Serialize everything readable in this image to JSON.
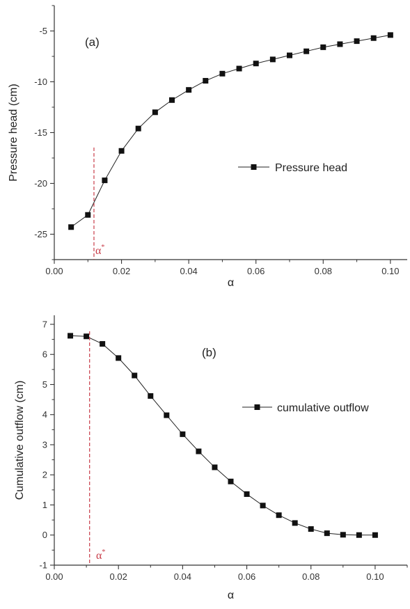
{
  "chart_data": [
    {
      "type": "line",
      "panel_label": "(a)",
      "xlabel": "α",
      "ylabel": "Pressure head (cm)",
      "xlim": [
        0.0,
        0.105
      ],
      "ylim": [
        -27.5,
        -2.5
      ],
      "xticks": [
        "0.00",
        "0.02",
        "0.04",
        "0.06",
        "0.08",
        "0.10"
      ],
      "yticks": [
        "-5",
        "-10",
        "-15",
        "-20",
        "-25"
      ],
      "grid": false,
      "legend_position": "right-middle",
      "marker": "square",
      "series": [
        {
          "name": "Pressure head",
          "x": [
            0.005,
            0.01,
            0.015,
            0.02,
            0.025,
            0.03,
            0.035,
            0.04,
            0.045,
            0.05,
            0.055,
            0.06,
            0.065,
            0.07,
            0.075,
            0.08,
            0.085,
            0.09,
            0.095,
            0.1
          ],
          "y": [
            -24.3,
            -23.1,
            -19.7,
            -16.8,
            -14.6,
            -13.0,
            -11.8,
            -10.8,
            -9.9,
            -9.2,
            -8.7,
            -8.2,
            -7.8,
            -7.4,
            -7.0,
            -6.6,
            -6.3,
            -6.0,
            -5.7,
            -5.4
          ]
        }
      ],
      "annotation": {
        "label": "α",
        "superscript": "*",
        "x": 0.0118,
        "color": "#c83c48"
      }
    },
    {
      "type": "line",
      "panel_label": "(b)",
      "xlabel": "α",
      "ylabel": "Cumulative outflow (cm)",
      "xlim": [
        0.0,
        0.11
      ],
      "ylim": [
        -1.0,
        7.3
      ],
      "xticks": [
        "0.00",
        "0.02",
        "0.04",
        "0.06",
        "0.08",
        "0.10"
      ],
      "yticks": [
        "7",
        "6",
        "5",
        "4",
        "3",
        "2",
        "1",
        "0",
        "-1"
      ],
      "grid": false,
      "legend_position": "right-middle",
      "marker": "square",
      "series": [
        {
          "name": "cumulative outflow",
          "x": [
            0.005,
            0.01,
            0.015,
            0.02,
            0.025,
            0.03,
            0.035,
            0.04,
            0.045,
            0.05,
            0.055,
            0.06,
            0.065,
            0.07,
            0.075,
            0.08,
            0.085,
            0.09,
            0.095,
            0.1
          ],
          "y": [
            6.62,
            6.6,
            6.35,
            5.88,
            5.3,
            4.62,
            3.98,
            3.35,
            2.78,
            2.25,
            1.78,
            1.36,
            0.98,
            0.66,
            0.4,
            0.2,
            0.06,
            0.01,
            0.0,
            0.0
          ]
        }
      ],
      "annotation": {
        "label": "α",
        "superscript": "*",
        "x": 0.011,
        "color": "#c83c48"
      }
    }
  ]
}
